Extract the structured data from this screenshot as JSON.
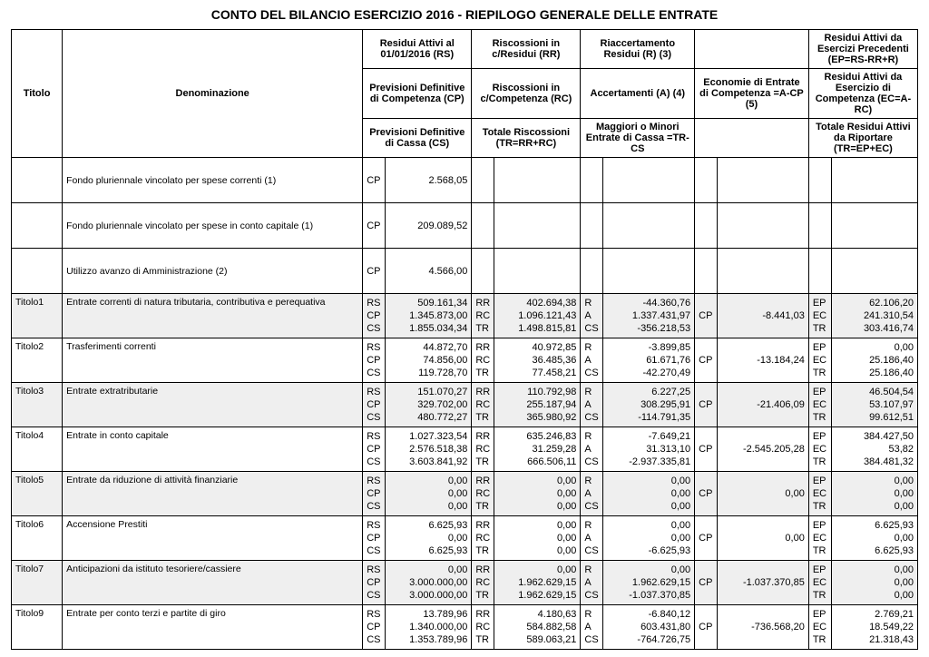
{
  "title": "CONTO DEL BILANCIO ESERCIZIO 2016  -  RIEPILOGO GENERALE DELLE ENTRATE",
  "headers": {
    "titolo": "Titolo",
    "denom": "Denominazione",
    "r1c3": "Residui Attivi al 01/01/2016 (RS)",
    "r1c4": "Riscossioni in c/Residui (RR)",
    "r1c5": "Riaccertamento Residui (R) (3)",
    "r1c6": "",
    "r1c7": "Residui Attivi da Esercizi Precedenti (EP=RS-RR+R)",
    "r2c3": "Previsioni Definitive di Competenza (CP)",
    "r2c4": "Riscossioni in c/Competenza (RC)",
    "r2c5": "Accertamenti (A) (4)",
    "r2c6": "Economie di Entrate di Competenza =A-CP (5)",
    "r2c7": "Residui Attivi da Esercizio di Competenza (EC=A-RC)",
    "r3c3": "Previsioni Definitive di Cassa (CS)",
    "r3c4": "Totale Riscossioni (TR=RR+RC)",
    "r3c5": "Maggiori o Minori Entrate di Cassa =TR-CS",
    "r3c6": "",
    "r3c7": "Totale Residui Attivi da Riportare (TR=EP+EC)"
  },
  "prelim": [
    {
      "label": "Fondo pluriennale vincolato per spese correnti (1)",
      "code": "CP",
      "value": "2.568,05"
    },
    {
      "label": "Fondo pluriennale vincolato per spese in conto capitale (1)",
      "code": "CP",
      "value": "209.089,52"
    },
    {
      "label": "Utilizzo avanzo di Amministrazione (2)",
      "code": "CP",
      "value": "4.566,00"
    }
  ],
  "rows": [
    {
      "titolo": "Titolo1",
      "denom": "Entrate correnti di natura tributaria, contributiva e perequativa",
      "gray": true,
      "c1": [
        "RS",
        "CP",
        "CS"
      ],
      "v1": [
        "509.161,34",
        "1.345.873,00",
        "1.855.034,34"
      ],
      "c2": [
        "RR",
        "RC",
        "TR"
      ],
      "v2": [
        "402.694,38",
        "1.096.121,43",
        "1.498.815,81"
      ],
      "c3": [
        "R",
        "A",
        "CS"
      ],
      "v3": [
        "-44.360,76",
        "1.337.431,97",
        "-356.218,53"
      ],
      "c4": [
        "",
        "CP",
        ""
      ],
      "v4": [
        "",
        "-8.441,03",
        ""
      ],
      "c5": [
        "EP",
        "EC",
        "TR"
      ],
      "v5": [
        "62.106,20",
        "241.310,54",
        "303.416,74"
      ]
    },
    {
      "titolo": "Titolo2",
      "denom": "Trasferimenti correnti",
      "gray": false,
      "c1": [
        "RS",
        "CP",
        "CS"
      ],
      "v1": [
        "44.872,70",
        "74.856,00",
        "119.728,70"
      ],
      "c2": [
        "RR",
        "RC",
        "TR"
      ],
      "v2": [
        "40.972,85",
        "36.485,36",
        "77.458,21"
      ],
      "c3": [
        "R",
        "A",
        "CS"
      ],
      "v3": [
        "-3.899,85",
        "61.671,76",
        "-42.270,49"
      ],
      "c4": [
        "",
        "CP",
        ""
      ],
      "v4": [
        "",
        "-13.184,24",
        ""
      ],
      "c5": [
        "EP",
        "EC",
        "TR"
      ],
      "v5": [
        "0,00",
        "25.186,40",
        "25.186,40"
      ]
    },
    {
      "titolo": "Titolo3",
      "denom": "Entrate extratributarie",
      "gray": true,
      "c1": [
        "RS",
        "CP",
        "CS"
      ],
      "v1": [
        "151.070,27",
        "329.702,00",
        "480.772,27"
      ],
      "c2": [
        "RR",
        "RC",
        "TR"
      ],
      "v2": [
        "110.792,98",
        "255.187,94",
        "365.980,92"
      ],
      "c3": [
        "R",
        "A",
        "CS"
      ],
      "v3": [
        "6.227,25",
        "308.295,91",
        "-114.791,35"
      ],
      "c4": [
        "",
        "CP",
        ""
      ],
      "v4": [
        "",
        "-21.406,09",
        ""
      ],
      "c5": [
        "EP",
        "EC",
        "TR"
      ],
      "v5": [
        "46.504,54",
        "53.107,97",
        "99.612,51"
      ]
    },
    {
      "titolo": "Titolo4",
      "denom": "Entrate in conto capitale",
      "gray": false,
      "c1": [
        "RS",
        "CP",
        "CS"
      ],
      "v1": [
        "1.027.323,54",
        "2.576.518,38",
        "3.603.841,92"
      ],
      "c2": [
        "RR",
        "RC",
        "TR"
      ],
      "v2": [
        "635.246,83",
        "31.259,28",
        "666.506,11"
      ],
      "c3": [
        "R",
        "A",
        "CS"
      ],
      "v3": [
        "-7.649,21",
        "31.313,10",
        "-2.937.335,81"
      ],
      "c4": [
        "",
        "CP",
        ""
      ],
      "v4": [
        "",
        "-2.545.205,28",
        ""
      ],
      "c5": [
        "EP",
        "EC",
        "TR"
      ],
      "v5": [
        "384.427,50",
        "53,82",
        "384.481,32"
      ]
    },
    {
      "titolo": "Titolo5",
      "denom": "Entrate da riduzione di attività finanziarie",
      "gray": true,
      "c1": [
        "RS",
        "CP",
        "CS"
      ],
      "v1": [
        "0,00",
        "0,00",
        "0,00"
      ],
      "c2": [
        "RR",
        "RC",
        "TR"
      ],
      "v2": [
        "0,00",
        "0,00",
        "0,00"
      ],
      "c3": [
        "R",
        "A",
        "CS"
      ],
      "v3": [
        "0,00",
        "0,00",
        "0,00"
      ],
      "c4": [
        "",
        "CP",
        ""
      ],
      "v4": [
        "",
        "0,00",
        ""
      ],
      "c5": [
        "EP",
        "EC",
        "TR"
      ],
      "v5": [
        "0,00",
        "0,00",
        "0,00"
      ]
    },
    {
      "titolo": "Titolo6",
      "denom": "Accensione Prestiti",
      "gray": false,
      "c1": [
        "RS",
        "CP",
        "CS"
      ],
      "v1": [
        "6.625,93",
        "0,00",
        "6.625,93"
      ],
      "c2": [
        "RR",
        "RC",
        "TR"
      ],
      "v2": [
        "0,00",
        "0,00",
        "0,00"
      ],
      "c3": [
        "R",
        "A",
        "CS"
      ],
      "v3": [
        "0,00",
        "0,00",
        "-6.625,93"
      ],
      "c4": [
        "",
        "CP",
        ""
      ],
      "v4": [
        "",
        "0,00",
        ""
      ],
      "c5": [
        "EP",
        "EC",
        "TR"
      ],
      "v5": [
        "6.625,93",
        "0,00",
        "6.625,93"
      ]
    },
    {
      "titolo": "Titolo7",
      "denom": "Anticipazioni da istituto tesoriere/cassiere",
      "gray": true,
      "c1": [
        "RS",
        "CP",
        "CS"
      ],
      "v1": [
        "0,00",
        "3.000.000,00",
        "3.000.000,00"
      ],
      "c2": [
        "RR",
        "RC",
        "TR"
      ],
      "v2": [
        "0,00",
        "1.962.629,15",
        "1.962.629,15"
      ],
      "c3": [
        "R",
        "A",
        "CS"
      ],
      "v3": [
        "0,00",
        "1.962.629,15",
        "-1.037.370,85"
      ],
      "c4": [
        "",
        "CP",
        ""
      ],
      "v4": [
        "",
        "-1.037.370,85",
        ""
      ],
      "c5": [
        "EP",
        "EC",
        "TR"
      ],
      "v5": [
        "0,00",
        "0,00",
        "0,00"
      ]
    },
    {
      "titolo": "Titolo9",
      "denom": "Entrate per conto terzi e partite di giro",
      "gray": false,
      "c1": [
        "RS",
        "CP",
        "CS"
      ],
      "v1": [
        "13.789,96",
        "1.340.000,00",
        "1.353.789,96"
      ],
      "c2": [
        "RR",
        "RC",
        "TR"
      ],
      "v2": [
        "4.180,63",
        "584.882,58",
        "589.063,21"
      ],
      "c3": [
        "R",
        "A",
        "CS"
      ],
      "v3": [
        "-6.840,12",
        "603.431,80",
        "-764.726,75"
      ],
      "c4": [
        "",
        "CP",
        ""
      ],
      "v4": [
        "",
        "-736.568,20",
        ""
      ],
      "c5": [
        "EP",
        "EC",
        "TR"
      ],
      "v5": [
        "2.769,21",
        "18.549,22",
        "21.318,43"
      ]
    }
  ]
}
